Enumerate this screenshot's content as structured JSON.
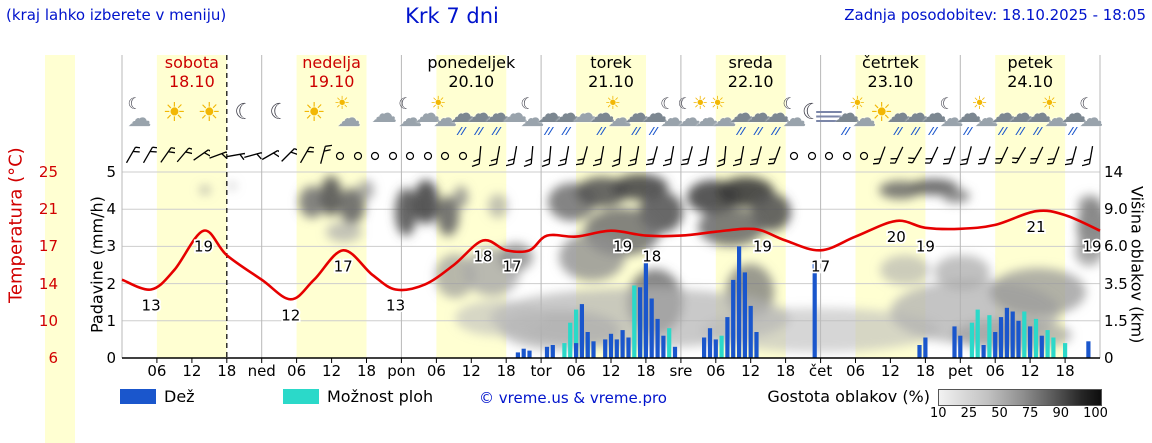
{
  "header": {
    "hint": "(kraj lahko izberete v meniju)",
    "title": "Krk 7 dni",
    "updated": "Zadnja posodobitev: 18.10.2025 - 18:05"
  },
  "colors": {
    "band": "#ffffd2",
    "rain": "#1a56cc",
    "shower": "#2bd9c9",
    "temp": "#e60000",
    "day_red": "#cc0000",
    "blue_text": "#0013cc"
  },
  "axes": {
    "temp_label": "Temperatura (°C)",
    "temp_ticks": [
      "25",
      "21",
      "17",
      "14",
      "10",
      "6"
    ],
    "precip_label": "Padavine (mm/h)",
    "precip_ticks": [
      "5",
      "4",
      "3",
      "2",
      "1",
      "0"
    ],
    "cloud_label": "Višina oblakov (km)",
    "cloud_ticks": [
      "14",
      "9.0",
      "6.0",
      "3.5",
      "1.5",
      "0"
    ],
    "hour_labels": [
      "06",
      "12",
      "18"
    ],
    "day_abbrs": [
      "ned",
      "pon",
      "tor",
      "sre",
      "čet",
      "pet"
    ]
  },
  "legend": {
    "rain": "Dež",
    "shower": "Možnost ploh",
    "credit": "© vreme.us & vreme.pro",
    "cloud_density": "Gostota oblakov (%)",
    "density_ticks": [
      "10",
      "25",
      "50",
      "75",
      "90",
      "100"
    ]
  },
  "days": [
    {
      "name": "sobota",
      "date": "18.10",
      "accent": "#cc0000",
      "icons": [
        {
          "h": 3,
          "type": "cloud-moon"
        },
        {
          "h": 9,
          "type": "sun"
        },
        {
          "h": 15,
          "type": "sun"
        },
        {
          "h": 21,
          "type": "moon"
        }
      ]
    },
    {
      "name": "nedelja",
      "date": "19.10",
      "accent": "#cc0000",
      "icons": [
        {
          "h": 3,
          "type": "moon"
        },
        {
          "h": 9,
          "type": "sun"
        },
        {
          "h": 15,
          "type": "sun-cloud"
        },
        {
          "h": 21,
          "type": "cloud"
        }
      ]
    },
    {
      "name": "ponedeljek",
      "date": "20.10",
      "accent": "#000000",
      "icons": [
        {
          "h": 1.5,
          "type": "cloud-moon"
        },
        {
          "h": 4.5,
          "type": "cloud"
        },
        {
          "h": 7.5,
          "type": "sun-cloud"
        },
        {
          "h": 10.5,
          "type": "rain"
        },
        {
          "h": 13.5,
          "type": "rain"
        },
        {
          "h": 16.5,
          "type": "rain"
        },
        {
          "h": 19.5,
          "type": "cloud"
        },
        {
          "h": 22.5,
          "type": "cloud-moon"
        }
      ]
    },
    {
      "name": "torek",
      "date": "21.10",
      "accent": "#000000",
      "icons": [
        {
          "h": 1.5,
          "type": "rain"
        },
        {
          "h": 4.5,
          "type": "rain"
        },
        {
          "h": 7.5,
          "type": "cloud"
        },
        {
          "h": 10.5,
          "type": "rain"
        },
        {
          "h": 13.5,
          "type": "sun-cloud"
        },
        {
          "h": 16.5,
          "type": "rain"
        },
        {
          "h": 19.5,
          "type": "rain"
        },
        {
          "h": 22.5,
          "type": "cloud-moon"
        }
      ]
    },
    {
      "name": "sreda",
      "date": "22.10",
      "accent": "#000000",
      "icons": [
        {
          "h": 1.5,
          "type": "cloud-moon"
        },
        {
          "h": 4.5,
          "type": "sun-cloud"
        },
        {
          "h": 7.5,
          "type": "sun-cloud"
        },
        {
          "h": 10.5,
          "type": "rain"
        },
        {
          "h": 13.5,
          "type": "rain"
        },
        {
          "h": 16.5,
          "type": "rain"
        },
        {
          "h": 19.5,
          "type": "cloud-moon"
        },
        {
          "h": 22.5,
          "type": "moon"
        }
      ]
    },
    {
      "name": "četrtek",
      "date": "23.10",
      "accent": "#000000",
      "icons": [
        {
          "h": 1.5,
          "type": "fog"
        },
        {
          "h": 4.5,
          "type": "rain"
        },
        {
          "h": 7.5,
          "type": "sun-cloud"
        },
        {
          "h": 10.5,
          "type": "sun"
        },
        {
          "h": 13.5,
          "type": "rain"
        },
        {
          "h": 16.5,
          "type": "rain"
        },
        {
          "h": 19.5,
          "type": "rain"
        },
        {
          "h": 22.5,
          "type": "cloud-moon"
        }
      ]
    },
    {
      "name": "petek",
      "date": "24.10",
      "accent": "#000000",
      "icons": [
        {
          "h": 1.5,
          "type": "rain"
        },
        {
          "h": 4.5,
          "type": "sun-cloud"
        },
        {
          "h": 7.5,
          "type": "rain"
        },
        {
          "h": 10.5,
          "type": "rain"
        },
        {
          "h": 13.5,
          "type": "rain"
        },
        {
          "h": 16.5,
          "type": "sun-cloud"
        },
        {
          "h": 19.5,
          "type": "rain"
        },
        {
          "h": 22.5,
          "type": "cloud-moon"
        }
      ]
    }
  ],
  "chart_data": {
    "type": "meteogram",
    "title": "Krk 7 dni",
    "x_range_hours": [
      0,
      168
    ],
    "temp_axis_range": [
      6,
      25
    ],
    "precip_axis_range": [
      0,
      5
    ],
    "cloud_height_axis_km": [
      "0",
      "1.5",
      "3.5",
      "6.0",
      "9.0",
      "14"
    ],
    "now_line_h": 18,
    "temperature_points": [
      [
        0,
        14
      ],
      [
        5,
        13
      ],
      [
        9,
        15
      ],
      [
        14,
        19
      ],
      [
        18,
        16.5
      ],
      [
        24,
        14
      ],
      [
        29,
        12
      ],
      [
        33,
        14
      ],
      [
        38,
        17
      ],
      [
        43,
        14.5
      ],
      [
        47,
        13
      ],
      [
        52,
        13.5
      ],
      [
        57,
        15.5
      ],
      [
        62,
        18
      ],
      [
        66,
        17
      ],
      [
        70,
        17
      ],
      [
        73,
        18.5
      ],
      [
        78,
        18.4
      ],
      [
        84,
        19
      ],
      [
        90,
        18.5
      ],
      [
        96,
        18.5
      ],
      [
        102,
        18.9
      ],
      [
        107,
        19.2
      ],
      [
        110,
        19
      ],
      [
        114,
        18
      ],
      [
        120,
        17
      ],
      [
        126,
        18.4
      ],
      [
        133,
        20
      ],
      [
        138,
        19.3
      ],
      [
        144,
        19.2
      ],
      [
        150,
        19.6
      ],
      [
        157,
        21
      ],
      [
        162,
        20.6
      ],
      [
        168,
        19
      ]
    ],
    "temperature_labels": [
      [
        5,
        13
      ],
      [
        14,
        19
      ],
      [
        29,
        12
      ],
      [
        38,
        17
      ],
      [
        47,
        13
      ],
      [
        62,
        18
      ],
      [
        67,
        17
      ],
      [
        86,
        19
      ],
      [
        91,
        18
      ],
      [
        110,
        19
      ],
      [
        120,
        17
      ],
      [
        133,
        20
      ],
      [
        138,
        19
      ],
      [
        157,
        21
      ],
      [
        167,
        19
      ]
    ],
    "precip_rain": [
      [
        68,
        0.15
      ],
      [
        69,
        0.25
      ],
      [
        70,
        0.2
      ],
      [
        73,
        0.3
      ],
      [
        74,
        0.35
      ],
      [
        78,
        0.4
      ],
      [
        79,
        1.45
      ],
      [
        80,
        0.7
      ],
      [
        81,
        0.45
      ],
      [
        83,
        0.5
      ],
      [
        84,
        0.65
      ],
      [
        85,
        0.5
      ],
      [
        86,
        0.75
      ],
      [
        87,
        0.55
      ],
      [
        89,
        1.9
      ],
      [
        90,
        2.6
      ],
      [
        91,
        1.6
      ],
      [
        92,
        1.05
      ],
      [
        93,
        0.6
      ],
      [
        95,
        0.3
      ],
      [
        100,
        0.55
      ],
      [
        101,
        0.8
      ],
      [
        102,
        0.5
      ],
      [
        104,
        1.1
      ],
      [
        105,
        2.1
      ],
      [
        106,
        3.0
      ],
      [
        107,
        2.3
      ],
      [
        108,
        1.4
      ],
      [
        109,
        0.7
      ],
      [
        119,
        2.6
      ],
      [
        137,
        0.35
      ],
      [
        138,
        0.55
      ],
      [
        143,
        0.85
      ],
      [
        144,
        0.6
      ],
      [
        148,
        0.35
      ],
      [
        150,
        0.7
      ],
      [
        151,
        1.1
      ],
      [
        152,
        1.35
      ],
      [
        153,
        1.25
      ],
      [
        154,
        1.0
      ],
      [
        156,
        0.85
      ],
      [
        158,
        0.6
      ],
      [
        166,
        0.45
      ]
    ],
    "precip_shower": [
      [
        76,
        0.4
      ],
      [
        77,
        0.95
      ],
      [
        78,
        1.3
      ],
      [
        80,
        0.55
      ],
      [
        88,
        1.95
      ],
      [
        89,
        1.35
      ],
      [
        94,
        0.8
      ],
      [
        103,
        0.6
      ],
      [
        146,
        0.95
      ],
      [
        147,
        1.3
      ],
      [
        149,
        1.15
      ],
      [
        155,
        1.25
      ],
      [
        157,
        1.05
      ],
      [
        159,
        0.75
      ],
      [
        160,
        0.55
      ],
      [
        162,
        0.4
      ]
    ],
    "wind": {
      "start_h": 1.5,
      "step_h": 3,
      "items": [
        30,
        30,
        35,
        40,
        55,
        70,
        80,
        75,
        60,
        45,
        30,
        15,
        "c",
        "c",
        "c",
        "c",
        "c",
        "c",
        "c",
        "c",
        185,
        190,
        190,
        185,
        185,
        190,
        195,
        190,
        185,
        190,
        195,
        190,
        195,
        190,
        185,
        190,
        195,
        200,
        "c",
        "c",
        "c",
        "c",
        "c",
        200,
        205,
        210,
        205,
        200,
        195,
        200,
        205,
        210,
        205,
        200,
        195,
        190
      ]
    },
    "cloud_shapes": [
      [
        205,
        190,
        5,
        4,
        "#999",
        0.8
      ],
      [
        232,
        186,
        4,
        3,
        "#aaa",
        0.8
      ],
      [
        312,
        202,
        13,
        16,
        "#777",
        0.9
      ],
      [
        331,
        196,
        11,
        20,
        "#555",
        0.9
      ],
      [
        352,
        206,
        13,
        18,
        "#666",
        0.9
      ],
      [
        366,
        190,
        8,
        10,
        "#999",
        0.8
      ],
      [
        344,
        232,
        18,
        10,
        "#aaa",
        0.7
      ],
      [
        406,
        212,
        11,
        24,
        "#555",
        0.9
      ],
      [
        426,
        202,
        13,
        22,
        "#474747",
        0.9
      ],
      [
        448,
        216,
        11,
        20,
        "#666",
        0.9
      ],
      [
        461,
        197,
        7,
        11,
        "#888",
        0.8
      ],
      [
        455,
        276,
        20,
        22,
        "#999",
        0.7
      ],
      [
        492,
        272,
        28,
        24,
        "#a8a8a8",
        0.8
      ],
      [
        516,
        257,
        17,
        14,
        "#8a8a8a",
        0.8
      ],
      [
        498,
        206,
        10,
        12,
        "#999",
        0.6
      ],
      [
        572,
        202,
        24,
        19,
        "#777",
        0.9
      ],
      [
        602,
        192,
        26,
        15,
        "#565656",
        0.9
      ],
      [
        640,
        187,
        28,
        13,
        "#484848",
        0.9
      ],
      [
        661,
        212,
        22,
        21,
        "#565656",
        0.9
      ],
      [
        622,
        232,
        38,
        24,
        "#6f6f6f",
        0.85
      ],
      [
        592,
        257,
        33,
        24,
        "#909090",
        0.8
      ],
      [
        655,
        302,
        28,
        33,
        "#5f5f5f",
        0.75
      ],
      [
        713,
        197,
        26,
        17,
        "#474747",
        0.9
      ],
      [
        746,
        192,
        28,
        15,
        "#3a3a3a",
        0.9
      ],
      [
        771,
        212,
        20,
        19,
        "#555",
        0.9
      ],
      [
        731,
        227,
        33,
        19,
        "#666",
        0.85
      ],
      [
        750,
        292,
        24,
        28,
        "#787878",
        0.75
      ],
      [
        640,
        318,
        150,
        30,
        "#b2b2b2",
        0.7
      ],
      [
        820,
        330,
        120,
        22,
        "#bbbbbb",
        0.6
      ],
      [
        560,
        330,
        60,
        20,
        "#adadad",
        0.7
      ],
      [
        500,
        318,
        45,
        18,
        "#bcbcbc",
        0.6
      ],
      [
        900,
        190,
        21,
        9,
        "#666",
        0.85
      ],
      [
        934,
        187,
        24,
        8,
        "#555",
        0.85
      ],
      [
        956,
        196,
        14,
        7,
        "#777",
        0.8
      ],
      [
        905,
        270,
        25,
        15,
        "#aaa",
        0.6
      ],
      [
        975,
        312,
        85,
        32,
        "#b0b0b0",
        0.75
      ],
      [
        1038,
        292,
        48,
        24,
        "#979797",
        0.75
      ],
      [
        962,
        272,
        28,
        17,
        "#a5a5a5",
        0.7
      ],
      [
        1012,
        335,
        60,
        16,
        "#a0a0a0",
        0.7
      ],
      [
        1093,
        227,
        16,
        26,
        "#777",
        0.85
      ],
      [
        1089,
        252,
        14,
        14,
        "#999",
        0.8
      ],
      [
        1090,
        205,
        12,
        10,
        "#888",
        0.8
      ]
    ]
  }
}
